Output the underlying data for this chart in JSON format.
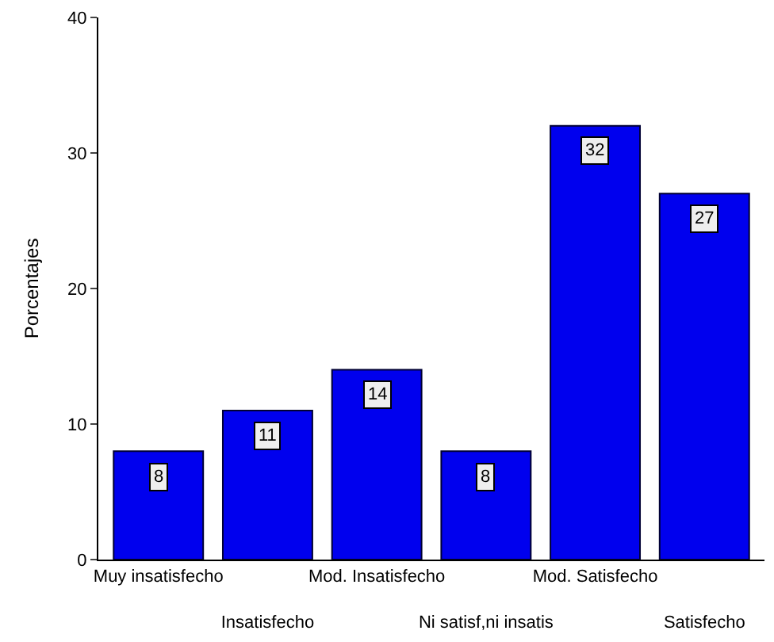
{
  "chart_data": {
    "type": "bar",
    "ylabel": "Porcentajes",
    "categories": [
      "Muy insatisfecho",
      "Insatisfecho",
      "Mod. Insatisfecho",
      "Ni satisf,ni insatis",
      "Mod. Satisfecho",
      "Satisfecho"
    ],
    "values": [
      8,
      11,
      14,
      8,
      32,
      27
    ],
    "color": "#0000ee",
    "ylim": [
      0,
      40
    ],
    "yticks": [
      0,
      10,
      20,
      30,
      40
    ],
    "data_labels": true
  }
}
